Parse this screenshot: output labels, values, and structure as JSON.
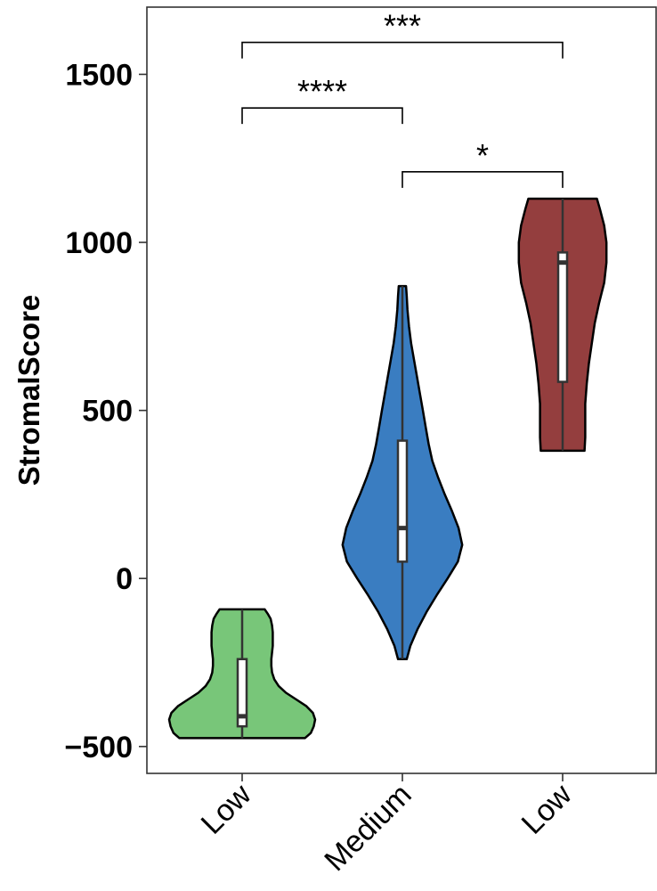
{
  "chart_data": {
    "type": "violin",
    "ylabel": "StromalScore",
    "xlabel": "",
    "ylim": [
      -580,
      1700
    ],
    "yticks": [
      -500,
      0,
      500,
      1000,
      1500
    ],
    "ytick_labels": [
      "−500",
      "0",
      "500",
      "1000",
      "1500"
    ],
    "grid": false,
    "categories": [
      "Low",
      "Medium",
      "Low"
    ],
    "groups": [
      {
        "category": "Low",
        "color": "#78c679",
        "box": {
          "q1": -440,
          "median": -410,
          "q3": -240
        },
        "density": [
          [
            -475,
            0.86
          ],
          [
            -460,
            0.94
          ],
          [
            -440,
            0.98
          ],
          [
            -420,
            1.0
          ],
          [
            -400,
            0.97
          ],
          [
            -380,
            0.88
          ],
          [
            -360,
            0.74
          ],
          [
            -340,
            0.6
          ],
          [
            -320,
            0.5
          ],
          [
            -300,
            0.44
          ],
          [
            -280,
            0.41
          ],
          [
            -260,
            0.4
          ],
          [
            -240,
            0.4
          ],
          [
            -220,
            0.41
          ],
          [
            -200,
            0.42
          ],
          [
            -180,
            0.42
          ],
          [
            -160,
            0.42
          ],
          [
            -140,
            0.41
          ],
          [
            -120,
            0.39
          ],
          [
            -105,
            0.35
          ],
          [
            -92,
            0.31
          ]
        ]
      },
      {
        "category": "Medium",
        "color": "#3a7dc1",
        "box": {
          "q1": 50,
          "median": 150,
          "q3": 410
        },
        "density": [
          [
            -240,
            0.06
          ],
          [
            -200,
            0.11
          ],
          [
            -150,
            0.21
          ],
          [
            -100,
            0.33
          ],
          [
            -50,
            0.47
          ],
          [
            0,
            0.62
          ],
          [
            50,
            0.76
          ],
          [
            100,
            0.82
          ],
          [
            150,
            0.77
          ],
          [
            200,
            0.68
          ],
          [
            250,
            0.58
          ],
          [
            300,
            0.49
          ],
          [
            350,
            0.41
          ],
          [
            400,
            0.36
          ],
          [
            450,
            0.32
          ],
          [
            500,
            0.28
          ],
          [
            550,
            0.24
          ],
          [
            600,
            0.2
          ],
          [
            650,
            0.16
          ],
          [
            700,
            0.12
          ],
          [
            750,
            0.09
          ],
          [
            800,
            0.07
          ],
          [
            840,
            0.06
          ],
          [
            870,
            0.05
          ]
        ]
      },
      {
        "category": "Low",
        "color": "#943e3e",
        "box": {
          "q1": 585,
          "median": 940,
          "q3": 970
        },
        "density": [
          [
            380,
            0.3
          ],
          [
            420,
            0.31
          ],
          [
            470,
            0.31
          ],
          [
            520,
            0.31
          ],
          [
            580,
            0.33
          ],
          [
            640,
            0.36
          ],
          [
            700,
            0.4
          ],
          [
            760,
            0.44
          ],
          [
            820,
            0.5
          ],
          [
            880,
            0.57
          ],
          [
            940,
            0.6
          ],
          [
            1000,
            0.6
          ],
          [
            1050,
            0.57
          ],
          [
            1100,
            0.51
          ],
          [
            1130,
            0.47
          ]
        ]
      }
    ],
    "significance": [
      {
        "from": 0,
        "to": 1,
        "bracket_y": 1400,
        "label": "****"
      },
      {
        "from": 1,
        "to": 2,
        "bracket_y": 1210,
        "label": "*"
      },
      {
        "from": 0,
        "to": 2,
        "bracket_y": 1595,
        "label": "***"
      }
    ]
  }
}
